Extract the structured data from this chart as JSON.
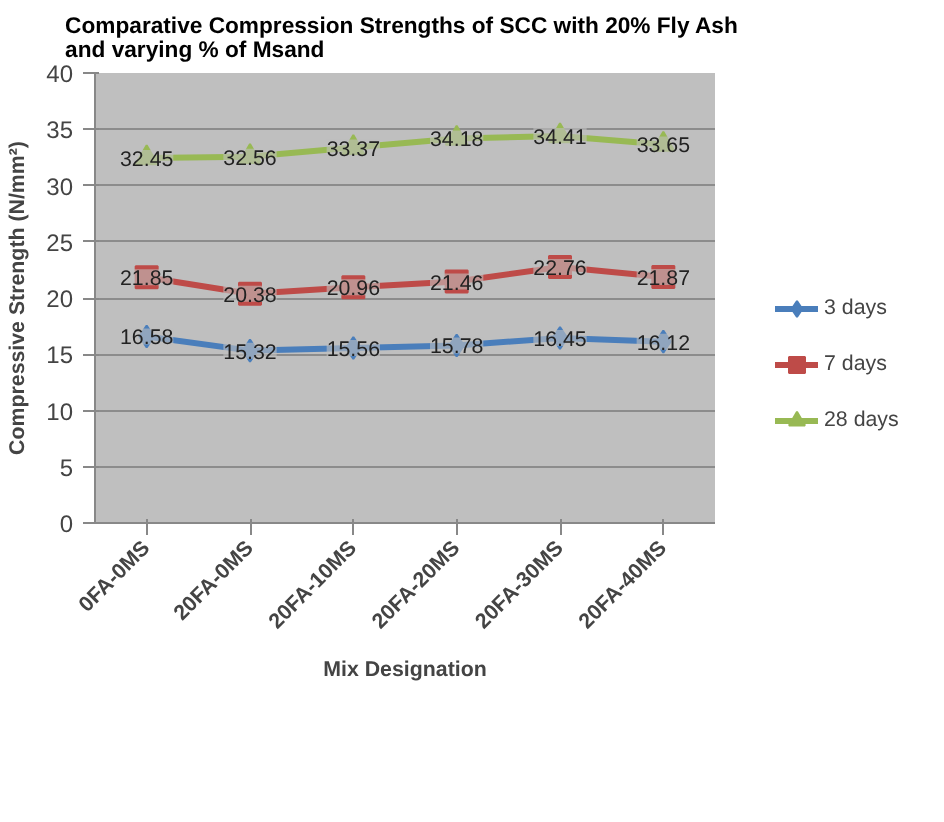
{
  "chart_data": {
    "type": "line",
    "title": "Comparative  Compression Strengths of SCC with 20% Fly Ash\nand varying % of Msand",
    "xlabel": "Mix Designation",
    "ylabel": "Compressive Strength (N/mm²)",
    "categories": [
      "0FA-0MS",
      "20FA-0MS",
      "20FA-10MS",
      "20FA-20MS",
      "20FA-30MS",
      "20FA-40MS"
    ],
    "series": [
      {
        "name": "3 days",
        "color": "#4a7ebb",
        "marker": "diamond",
        "values": [
          16.58,
          15.32,
          15.56,
          15.78,
          16.45,
          16.12
        ]
      },
      {
        "name": "7 days",
        "color": "#be4b48",
        "marker": "square",
        "values": [
          21.85,
          20.38,
          20.96,
          21.46,
          22.76,
          21.87
        ]
      },
      {
        "name": "28 days",
        "color": "#98b954",
        "marker": "triangle",
        "values": [
          32.45,
          32.56,
          33.37,
          34.18,
          34.41,
          33.65
        ]
      }
    ],
    "ylim": [
      0,
      40
    ],
    "yticks": [
      0,
      5,
      10,
      15,
      20,
      25,
      30,
      35,
      40
    ],
    "grid": "y",
    "legend": "right",
    "data_labels": true
  }
}
